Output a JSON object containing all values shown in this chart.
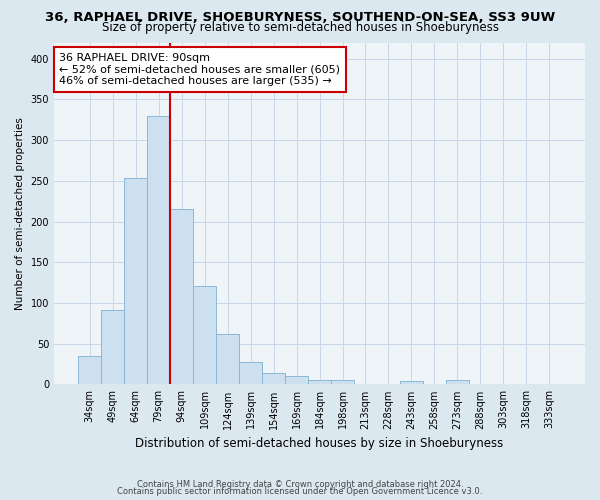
{
  "title": "36, RAPHAEL DRIVE, SHOEBURYNESS, SOUTHEND-ON-SEA, SS3 9UW",
  "subtitle": "Size of property relative to semi-detached houses in Shoeburyness",
  "xlabel": "Distribution of semi-detached houses by size in Shoeburyness",
  "ylabel": "Number of semi-detached properties",
  "bar_labels": [
    "34sqm",
    "49sqm",
    "64sqm",
    "79sqm",
    "94sqm",
    "109sqm",
    "124sqm",
    "139sqm",
    "154sqm",
    "169sqm",
    "184sqm",
    "198sqm",
    "213sqm",
    "228sqm",
    "243sqm",
    "258sqm",
    "273sqm",
    "288sqm",
    "303sqm",
    "318sqm",
    "333sqm"
  ],
  "bar_values": [
    35,
    91,
    254,
    330,
    215,
    121,
    62,
    27,
    14,
    10,
    5,
    5,
    0,
    0,
    4,
    0,
    5,
    0,
    0,
    0,
    0
  ],
  "bar_color": "#cce0f0",
  "bar_edge_color": "#8ab8d8",
  "vline_color": "#cc0000",
  "annotation_title": "36 RAPHAEL DRIVE: 90sqm",
  "annotation_line1": "← 52% of semi-detached houses are smaller (605)",
  "annotation_line2": "46% of semi-detached houses are larger (535) →",
  "annotation_box_color": "#ffffff",
  "annotation_box_edge": "#cc0000",
  "ylim": [
    0,
    420
  ],
  "yticks": [
    0,
    50,
    100,
    150,
    200,
    250,
    300,
    350,
    400
  ],
  "footer1": "Contains HM Land Registry data © Crown copyright and database right 2024.",
  "footer2": "Contains public sector information licensed under the Open Government Licence v3.0.",
  "bg_color": "#dce8f0",
  "plot_bg_color": "#eef4f8",
  "grid_color": "#c8d8e8"
}
